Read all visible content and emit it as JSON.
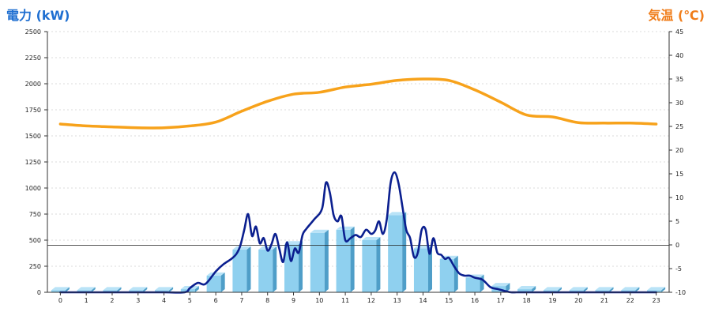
{
  "chart_data": {
    "type": "bar+line",
    "left_axis_title": "電力 (kW)",
    "right_axis_title": "気温 (℃)",
    "x_ticks": [
      "0",
      "1",
      "2",
      "3",
      "4",
      "5",
      "6",
      "7",
      "8",
      "9",
      "10",
      "11",
      "12",
      "13",
      "14",
      "15",
      "16",
      "17",
      "18",
      "19",
      "20",
      "21",
      "22",
      "23"
    ],
    "y_left": {
      "min": 0,
      "max": 2500,
      "ticks": [
        "0",
        "250",
        "500",
        "750",
        "1000",
        "1250",
        "1500",
        "1750",
        "2000",
        "2250",
        "2500"
      ]
    },
    "y_right": {
      "min": -10,
      "max": 45,
      "ticks": [
        "-10",
        "-5",
        "0",
        "5",
        "10",
        "15",
        "20",
        "25",
        "30",
        "35",
        "40",
        "45"
      ]
    },
    "grid": true,
    "bars": {
      "categories": [
        0,
        1,
        2,
        3,
        4,
        5,
        6,
        7,
        8,
        9,
        10,
        11,
        12,
        13,
        14,
        15,
        16,
        17,
        18,
        19,
        20,
        21,
        22,
        23
      ],
      "values": [
        20,
        20,
        20,
        20,
        20,
        30,
        160,
        410,
        410,
        460,
        570,
        600,
        500,
        740,
        420,
        320,
        140,
        60,
        30,
        20,
        20,
        20,
        20,
        20
      ]
    },
    "power_line": {
      "x": [
        0,
        1,
        2,
        3,
        4,
        4.8,
        5,
        5.3,
        5.6,
        6,
        6.3,
        6.6,
        6.8,
        6.95,
        7.1,
        7.25,
        7.4,
        7.55,
        7.7,
        7.85,
        8.0,
        8.15,
        8.3,
        8.45,
        8.6,
        8.75,
        8.9,
        9.05,
        9.2,
        9.35,
        9.5,
        9.8,
        10.1,
        10.25,
        10.4,
        10.55,
        10.7,
        10.85,
        11.0,
        11.2,
        11.4,
        11.6,
        11.8,
        12.0,
        12.15,
        12.3,
        12.45,
        12.6,
        12.75,
        12.9,
        13.05,
        13.2,
        13.35,
        13.5,
        13.65,
        13.8,
        13.95,
        14.1,
        14.25,
        14.4,
        14.55,
        14.7,
        14.85,
        15.0,
        15.2,
        15.4,
        15.6,
        15.8,
        16.0,
        16.3,
        16.6,
        16.9,
        17.2,
        17.4,
        17.6,
        17.8,
        18,
        19,
        20,
        21,
        22,
        23
      ],
      "y": [
        0,
        0,
        0,
        0,
        0,
        0,
        40,
        90,
        80,
        200,
        270,
        320,
        370,
        450,
        600,
        750,
        540,
        630,
        470,
        520,
        400,
        460,
        560,
        420,
        290,
        480,
        300,
        420,
        380,
        550,
        610,
        700,
        800,
        1050,
        960,
        740,
        680,
        730,
        500,
        520,
        550,
        530,
        600,
        560,
        590,
        680,
        560,
        700,
        1050,
        1150,
        1050,
        830,
        600,
        520,
        340,
        380,
        600,
        600,
        370,
        520,
        380,
        360,
        320,
        330,
        250,
        180,
        160,
        160,
        140,
        120,
        50,
        30,
        10,
        0,
        0,
        0,
        0,
        0,
        0,
        0,
        0,
        0
      ],
      "color": "#0b1f8f"
    },
    "temperature": {
      "x": [
        0,
        1,
        2,
        3,
        4,
        5,
        6,
        7,
        8,
        9,
        10,
        11,
        12,
        13,
        14,
        15,
        16,
        17,
        18,
        19,
        20,
        21,
        22,
        23
      ],
      "y": [
        25.5,
        25.1,
        24.9,
        24.7,
        24.7,
        25.1,
        25.9,
        28.2,
        30.3,
        31.8,
        32.2,
        33.3,
        33.9,
        34.7,
        35.0,
        34.7,
        32.7,
        30.1,
        27.4,
        27.0,
        25.8,
        25.7,
        25.7,
        25.5
      ],
      "color": "#f7a21b"
    },
    "reference_line_value": 450,
    "colors": {
      "bar": "#8fd0ef",
      "bar_side": "#4f9ec8",
      "bar_top": "#b9e3f7",
      "left_title": "#1f6fd1",
      "right_title": "#f07d1a",
      "grid": "#b8b8b8"
    }
  }
}
